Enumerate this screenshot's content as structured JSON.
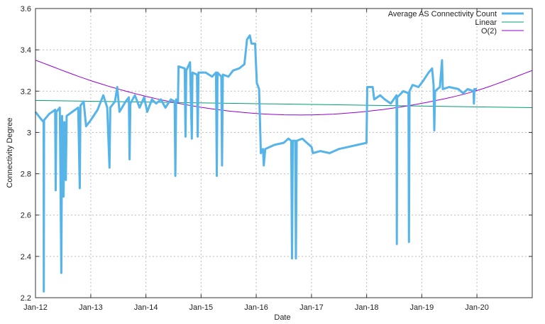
{
  "chart_data": {
    "type": "line",
    "title": "",
    "xlabel": "Date",
    "ylabel": "Connectivity Degree",
    "xlim": [
      "2012-01-01",
      "2021-01-01"
    ],
    "ylim": [
      2.2,
      3.6
    ],
    "x_ticks": [
      "Jan-12",
      "Jan-13",
      "Jan-14",
      "Jan-15",
      "Jan-16",
      "Jan-17",
      "Jan-18",
      "Jan-19",
      "Jan-20"
    ],
    "x_tick_dates": [
      "2012-01-01",
      "2013-01-01",
      "2014-01-01",
      "2015-01-01",
      "2016-01-01",
      "2017-01-01",
      "2018-01-01",
      "2019-01-01",
      "2020-01-01"
    ],
    "y_ticks": [
      "2.2",
      "2.4",
      "2.6",
      "2.8",
      "3",
      "3.2",
      "3.4",
      "3.6"
    ],
    "grid": true,
    "legend_position": "top-right",
    "series": [
      {
        "name": "Average AS Connectivity Count",
        "color": "#56b4e9",
        "points": [
          [
            "2012-01-01",
            3.1
          ],
          [
            "2012-02-01",
            3.07
          ],
          [
            "2012-02-24",
            3.05
          ],
          [
            "2012-02-25",
            2.23
          ],
          [
            "2012-02-27",
            3.06
          ],
          [
            "2012-04-01",
            3.09
          ],
          [
            "2012-05-10",
            3.11
          ],
          [
            "2012-05-14",
            2.72
          ],
          [
            "2012-05-18",
            3.1
          ],
          [
            "2012-06-10",
            3.12
          ],
          [
            "2012-06-20",
            2.32
          ],
          [
            "2012-06-25",
            3.08
          ],
          [
            "2012-07-05",
            2.69
          ],
          [
            "2012-07-10",
            3.05
          ],
          [
            "2012-07-20",
            2.77
          ],
          [
            "2012-07-25",
            3.08
          ],
          [
            "2012-09-01",
            3.1
          ],
          [
            "2012-10-10",
            3.12
          ],
          [
            "2012-10-20",
            2.73
          ],
          [
            "2012-10-25",
            3.13
          ],
          [
            "2012-11-15",
            3.15
          ],
          [
            "2012-12-01",
            3.03
          ],
          [
            "2013-01-01",
            3.06
          ],
          [
            "2013-02-15",
            3.11
          ],
          [
            "2013-03-25",
            3.18
          ],
          [
            "2013-04-20",
            3.12
          ],
          [
            "2013-05-05",
            2.83
          ],
          [
            "2013-05-10",
            3.12
          ],
          [
            "2013-06-10",
            3.15
          ],
          [
            "2013-06-25",
            3.22
          ],
          [
            "2013-07-10",
            3.1
          ],
          [
            "2013-08-20",
            3.15
          ],
          [
            "2013-09-10",
            3.17
          ],
          [
            "2013-09-15",
            2.87
          ],
          [
            "2013-09-20",
            3.14
          ],
          [
            "2013-10-20",
            3.18
          ],
          [
            "2013-11-20",
            3.12
          ],
          [
            "2013-12-20",
            3.17
          ],
          [
            "2014-01-10",
            3.1
          ],
          [
            "2014-02-10",
            3.16
          ],
          [
            "2014-03-10",
            3.14
          ],
          [
            "2014-04-10",
            3.16
          ],
          [
            "2014-05-10",
            3.12
          ],
          [
            "2014-06-15",
            3.16
          ],
          [
            "2014-07-10",
            3.15
          ],
          [
            "2014-07-15",
            2.79
          ],
          [
            "2014-07-20",
            3.16
          ],
          [
            "2014-08-01",
            3.15
          ],
          [
            "2014-08-05",
            3.32
          ],
          [
            "2014-09-15",
            3.31
          ],
          [
            "2014-09-20",
            2.98
          ],
          [
            "2014-09-25",
            3.3
          ],
          [
            "2014-10-20",
            3.34
          ],
          [
            "2014-11-01",
            2.97
          ],
          [
            "2014-11-05",
            3.29
          ],
          [
            "2014-12-05",
            3.28
          ],
          [
            "2014-12-10",
            2.98
          ],
          [
            "2014-12-15",
            3.29
          ],
          [
            "2015-02-01",
            3.29
          ],
          [
            "2015-03-15",
            3.27
          ],
          [
            "2015-04-10",
            3.29
          ],
          [
            "2015-04-15",
            2.79
          ],
          [
            "2015-04-20",
            3.29
          ],
          [
            "2015-05-15",
            3.27
          ],
          [
            "2015-05-20",
            2.84
          ],
          [
            "2015-05-25",
            3.28
          ],
          [
            "2015-07-01",
            3.27
          ],
          [
            "2015-08-01",
            3.3
          ],
          [
            "2015-09-10",
            3.31
          ],
          [
            "2015-10-15",
            3.33
          ],
          [
            "2015-11-01",
            3.45
          ],
          [
            "2015-11-20",
            3.47
          ],
          [
            "2015-12-01",
            3.43
          ],
          [
            "2015-12-25",
            3.43
          ],
          [
            "2016-01-05",
            3.24
          ],
          [
            "2016-01-20",
            3.21
          ],
          [
            "2016-02-01",
            2.9
          ],
          [
            "2016-02-15",
            2.92
          ],
          [
            "2016-02-20",
            2.84
          ],
          [
            "2016-03-01",
            2.92
          ],
          [
            "2016-05-01",
            2.94
          ],
          [
            "2016-07-01",
            2.95
          ],
          [
            "2016-08-01",
            2.97
          ],
          [
            "2016-08-20",
            2.96
          ],
          [
            "2016-08-25",
            2.39
          ],
          [
            "2016-08-30",
            2.96
          ],
          [
            "2016-09-15",
            2.96
          ],
          [
            "2016-09-20",
            2.39
          ],
          [
            "2016-09-25",
            2.96
          ],
          [
            "2016-11-01",
            2.97
          ],
          [
            "2016-12-01",
            2.95
          ],
          [
            "2017-01-01",
            2.93
          ],
          [
            "2017-01-10",
            2.9
          ],
          [
            "2017-03-01",
            2.91
          ],
          [
            "2017-05-01",
            2.9
          ],
          [
            "2017-07-01",
            2.92
          ],
          [
            "2017-09-01",
            2.93
          ],
          [
            "2017-11-01",
            2.94
          ],
          [
            "2017-12-31",
            2.95
          ],
          [
            "2018-01-05",
            3.22
          ],
          [
            "2018-02-10",
            3.22
          ],
          [
            "2018-02-20",
            3.16
          ],
          [
            "2018-04-01",
            3.18
          ],
          [
            "2018-05-01",
            3.16
          ],
          [
            "2018-06-10",
            3.14
          ],
          [
            "2018-07-18",
            3.18
          ],
          [
            "2018-07-20",
            2.46
          ],
          [
            "2018-07-22",
            3.17
          ],
          [
            "2018-09-01",
            3.2
          ],
          [
            "2018-10-05",
            3.19
          ],
          [
            "2018-10-08",
            2.47
          ],
          [
            "2018-10-12",
            3.2
          ],
          [
            "2018-11-01",
            3.23
          ],
          [
            "2018-12-10",
            3.22
          ],
          [
            "2019-01-10",
            3.25
          ],
          [
            "2019-02-15",
            3.29
          ],
          [
            "2019-03-10",
            3.31
          ],
          [
            "2019-03-20",
            3.23
          ],
          [
            "2019-03-25",
            3.01
          ],
          [
            "2019-03-30",
            3.2
          ],
          [
            "2019-05-01",
            3.22
          ],
          [
            "2019-05-15",
            3.35
          ],
          [
            "2019-05-20",
            3.21
          ],
          [
            "2019-07-01",
            3.22
          ],
          [
            "2019-09-01",
            3.21
          ],
          [
            "2019-10-01",
            3.19
          ],
          [
            "2019-11-01",
            3.21
          ],
          [
            "2019-12-10",
            3.2
          ],
          [
            "2019-12-12",
            3.14
          ],
          [
            "2019-12-15",
            3.21
          ],
          [
            "2020-01-01",
            3.21
          ]
        ]
      },
      {
        "name": "Linear",
        "color": "#009e73",
        "points": [
          [
            "2012-01-01",
            3.155
          ],
          [
            "2021-01-01",
            3.12
          ]
        ]
      },
      {
        "name": "O(2)",
        "color": "#9400d3",
        "points": [
          [
            "2012-01-01",
            3.35
          ],
          [
            "2013-01-01",
            3.251
          ],
          [
            "2014-01-01",
            3.175
          ],
          [
            "2015-01-01",
            3.122
          ],
          [
            "2016-01-01",
            3.092
          ],
          [
            "2017-01-01",
            3.085
          ],
          [
            "2018-01-01",
            3.102
          ],
          [
            "2019-01-01",
            3.141
          ],
          [
            "2020-01-01",
            3.203
          ],
          [
            "2021-01-01",
            3.3
          ]
        ]
      }
    ]
  }
}
